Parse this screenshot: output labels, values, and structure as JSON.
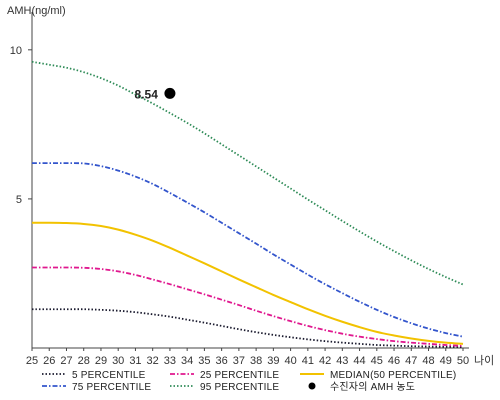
{
  "chart_data": {
    "type": "line",
    "ylabel": "AMH(ng/ml)",
    "xlabel": "나이",
    "x": [
      25,
      26,
      27,
      28,
      29,
      30,
      31,
      32,
      33,
      34,
      35,
      36,
      37,
      38,
      39,
      40,
      41,
      42,
      43,
      44,
      45,
      46,
      47,
      48,
      49,
      50
    ],
    "xlim": [
      25,
      50
    ],
    "ylim": [
      0,
      11
    ],
    "yticks": [
      5,
      10
    ],
    "series": [
      {
        "name": "5 PERCENTILE",
        "color": "#1a1a2e",
        "style": "dotted",
        "values": [
          1.3,
          1.3,
          1.3,
          1.3,
          1.28,
          1.25,
          1.2,
          1.13,
          1.05,
          0.95,
          0.85,
          0.74,
          0.63,
          0.53,
          0.44,
          0.36,
          0.29,
          0.23,
          0.18,
          0.14,
          0.1,
          0.08,
          0.06,
          0.05,
          0.04,
          0.03
        ]
      },
      {
        "name": "25 PERCENTILE",
        "color": "#e0188f",
        "style": "dashdot",
        "values": [
          2.7,
          2.7,
          2.7,
          2.69,
          2.65,
          2.57,
          2.45,
          2.3,
          2.14,
          1.97,
          1.8,
          1.62,
          1.44,
          1.25,
          1.07,
          0.9,
          0.74,
          0.6,
          0.48,
          0.38,
          0.3,
          0.23,
          0.18,
          0.14,
          0.1,
          0.07
        ]
      },
      {
        "name": "MEDIAN(50 PERCENTILE)",
        "color": "#f2c200",
        "style": "solid",
        "values": [
          4.2,
          4.2,
          4.19,
          4.16,
          4.09,
          3.97,
          3.8,
          3.6,
          3.36,
          3.1,
          2.84,
          2.57,
          2.3,
          2.04,
          1.78,
          1.54,
          1.3,
          1.08,
          0.88,
          0.7,
          0.54,
          0.42,
          0.32,
          0.24,
          0.18,
          0.14
        ]
      },
      {
        "name": "75 PERCENTILE",
        "color": "#3355cc",
        "style": "dashdot",
        "values": [
          6.2,
          6.2,
          6.2,
          6.19,
          6.1,
          5.95,
          5.75,
          5.5,
          5.2,
          4.88,
          4.55,
          4.2,
          3.85,
          3.5,
          3.14,
          2.8,
          2.46,
          2.14,
          1.84,
          1.55,
          1.28,
          1.04,
          0.83,
          0.65,
          0.5,
          0.38
        ]
      },
      {
        "name": "95 PERCENTILE",
        "color": "#2e8b57",
        "style": "dotted",
        "values": [
          9.6,
          9.5,
          9.4,
          9.25,
          9.05,
          8.8,
          8.5,
          8.2,
          7.88,
          7.55,
          7.2,
          6.83,
          6.46,
          6.09,
          5.72,
          5.35,
          4.98,
          4.62,
          4.26,
          3.91,
          3.57,
          3.25,
          2.94,
          2.65,
          2.38,
          2.13
        ]
      }
    ],
    "marker": {
      "name": "수진자의 AMH 농도",
      "x": 33,
      "y": 8.54,
      "label": "8.54",
      "color": "#000000"
    },
    "legend_order": [
      "5 PERCENTILE",
      "25 PERCENTILE",
      "MEDIAN(50 PERCENTILE)",
      "75 PERCENTILE",
      "95 PERCENTILE",
      "수진자의 AMH 농도"
    ],
    "legend_position": "bottom",
    "grid": false
  }
}
